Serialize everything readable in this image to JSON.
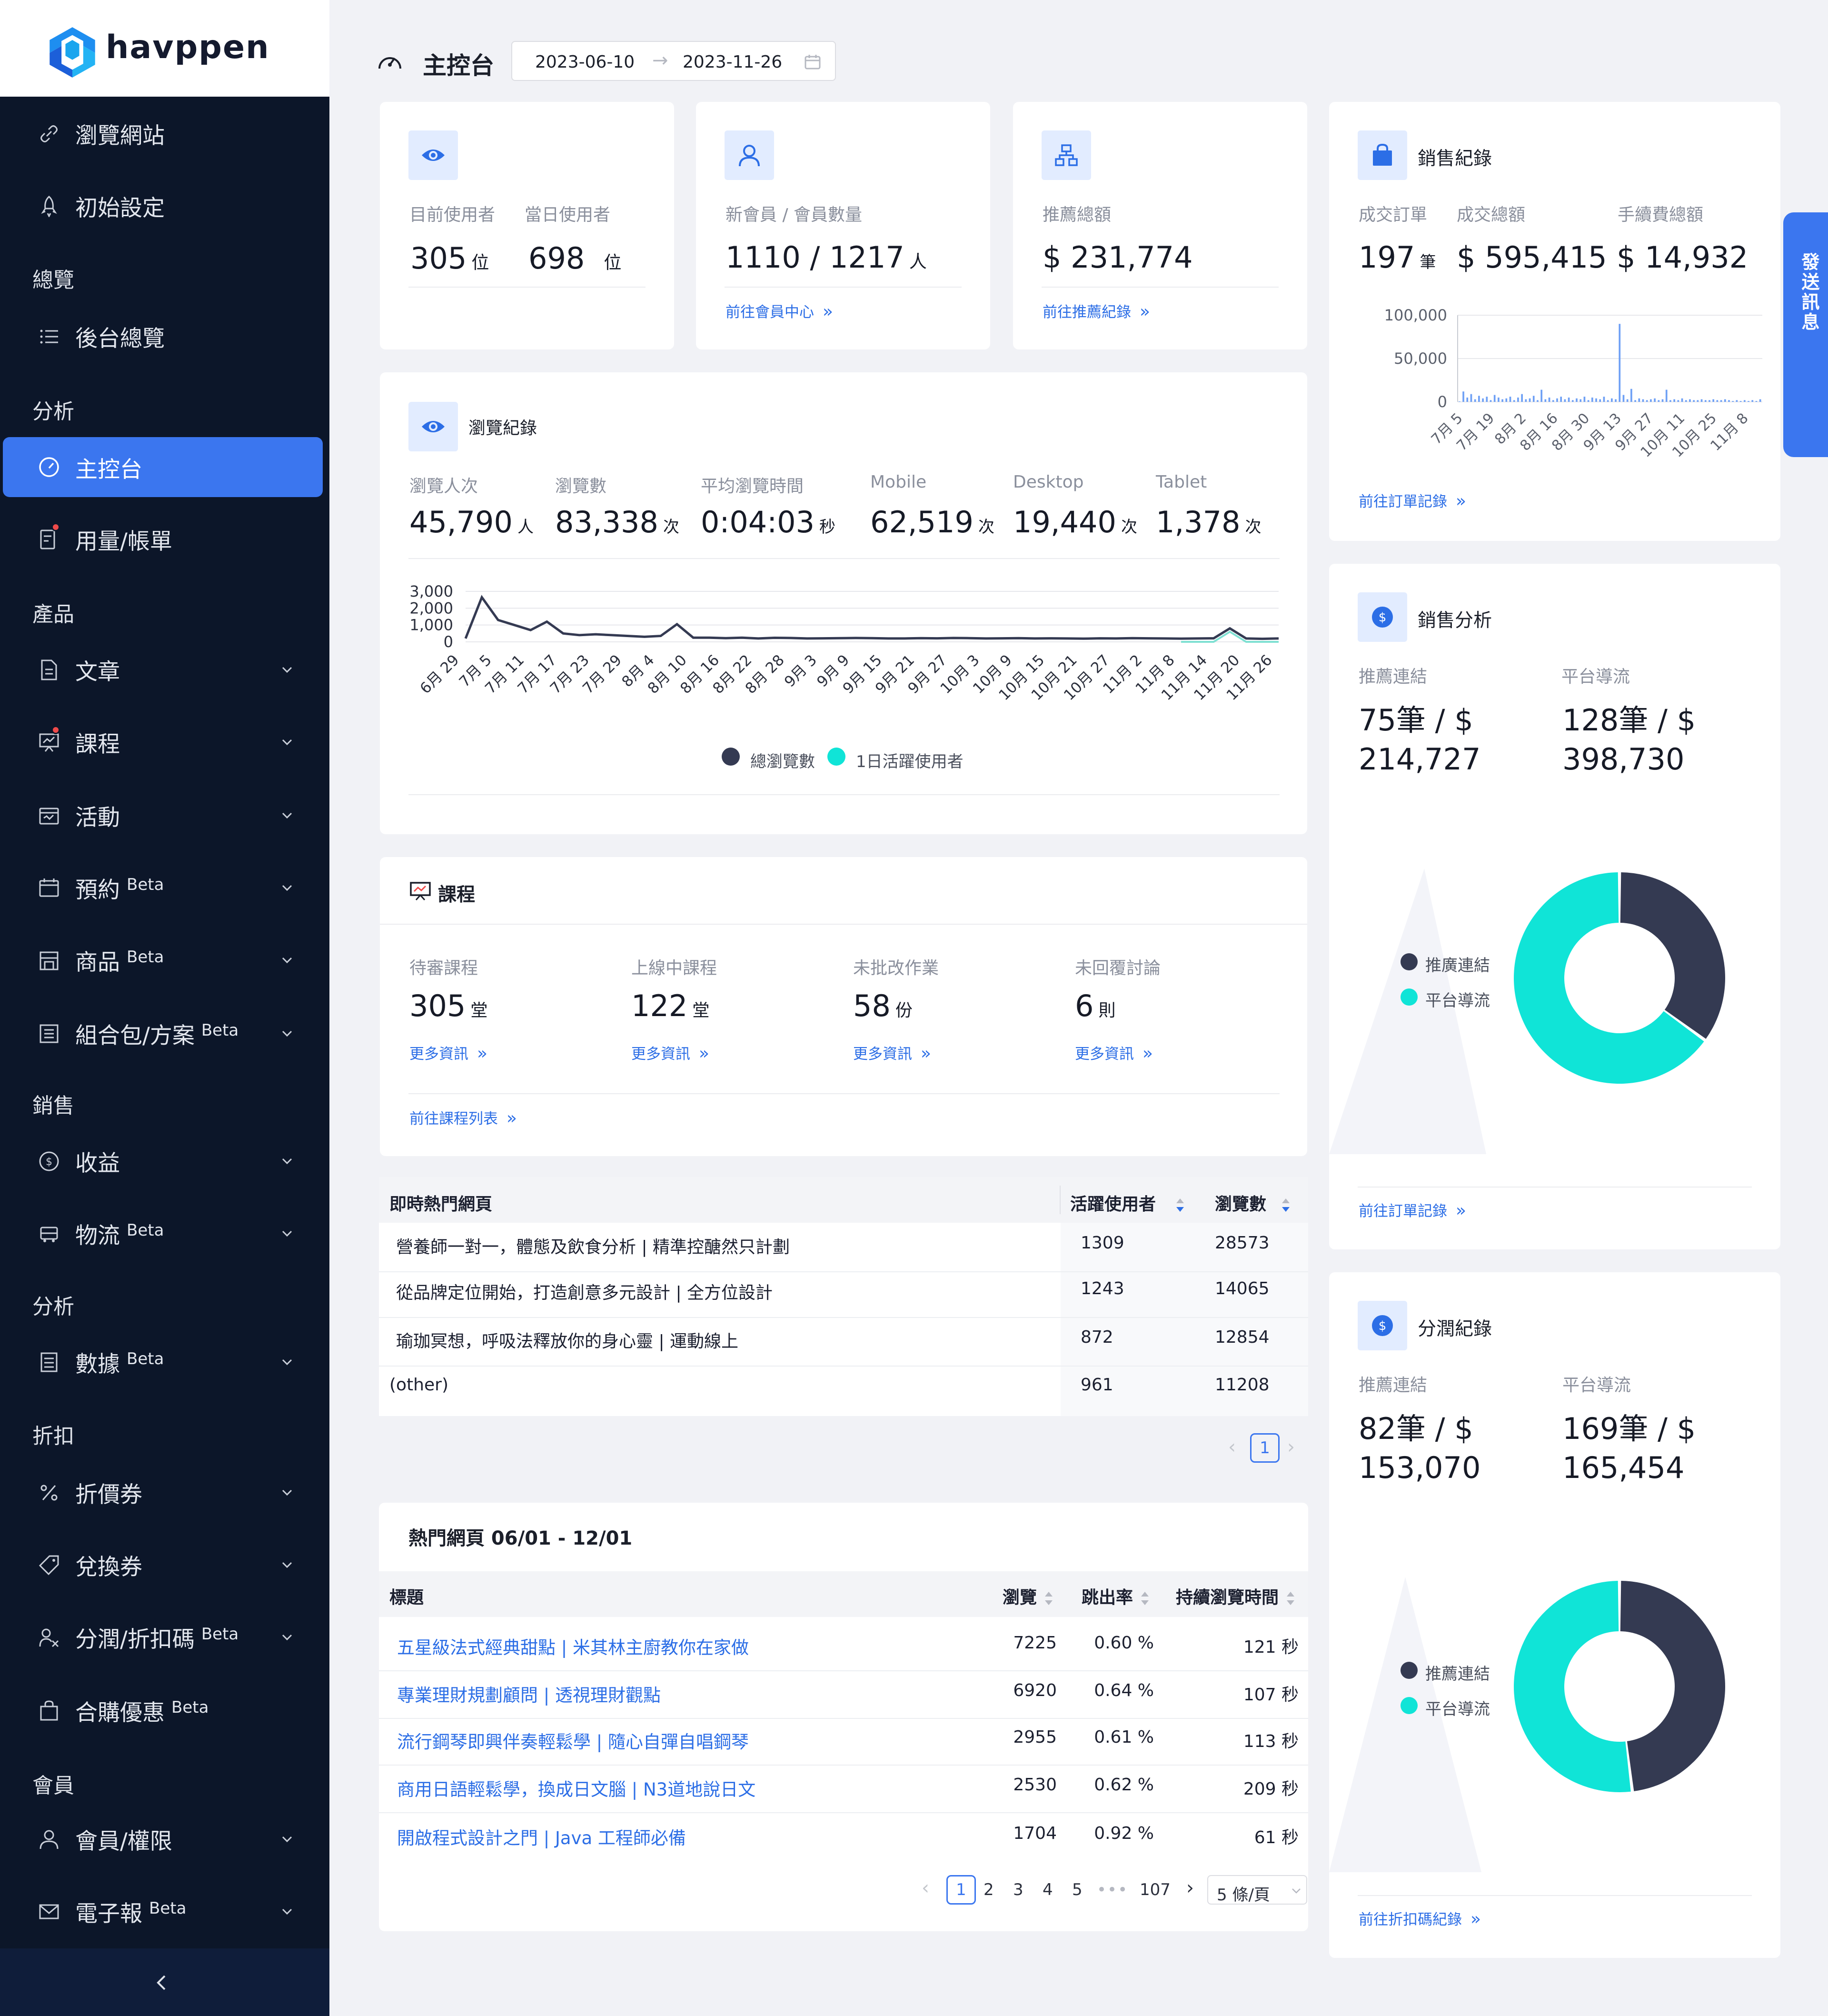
{
  "brand": {
    "name": "havppen"
  },
  "sidebar": {
    "items": [
      {
        "label": "瀏覽網站"
      },
      {
        "label": "初始設定"
      },
      {
        "label": "後台總覽"
      },
      {
        "label": "主控台"
      },
      {
        "label": "用量/帳單"
      },
      {
        "label": "文章"
      },
      {
        "label": "課程"
      },
      {
        "label": "活動"
      },
      {
        "label": "預約",
        "beta": "Beta"
      },
      {
        "label": "商品",
        "beta": "Beta"
      },
      {
        "label": "組合包/方案",
        "beta": "Beta"
      },
      {
        "label": "收益"
      },
      {
        "label": "物流",
        "beta": "Beta"
      },
      {
        "label": "數據",
        "beta": "Beta"
      },
      {
        "label": "折價券"
      },
      {
        "label": "兌換券"
      },
      {
        "label": "分潤/折扣碼",
        "beta": "Beta"
      },
      {
        "label": "合購優惠",
        "beta": "Beta"
      },
      {
        "label": "會員/權限"
      },
      {
        "label": "電子報",
        "beta": "Beta"
      }
    ],
    "groups": [
      "總覽",
      "分析",
      "產品",
      "銷售",
      "分析",
      "折扣",
      "會員"
    ],
    "collapse_icon": "chevron-left-icon"
  },
  "header": {
    "title": "主控台",
    "date_start": "2023-06-10",
    "date_end": "2023-11-26",
    "arrow": "→"
  },
  "side_tab": {
    "label": "發送訊息"
  },
  "users_card": {
    "current_label": "目前使用者",
    "current_value": "305",
    "current_unit": "位",
    "daily_label": "當日使用者",
    "daily_value": "698",
    "daily_unit": "位"
  },
  "members_card": {
    "label": "新會員 / 會員數量",
    "value": "1110 / 1217",
    "unit": "人",
    "link": "前往會員中心"
  },
  "referral_card": {
    "label": "推薦總額",
    "value": "$ 231,774",
    "link": "前往推薦紀錄"
  },
  "sales_card": {
    "title": "銷售紀錄",
    "orders_label": "成交訂單",
    "orders_value": "197",
    "orders_unit": "筆",
    "total_label": "成交總額",
    "total_value": "$ 595,415",
    "fee_label": "手續費總額",
    "fee_value": "$ 14,932",
    "link": "前往訂單記錄"
  },
  "browse_card": {
    "title": "瀏覽紀錄",
    "stats": [
      {
        "label": "瀏覽人次",
        "value": "45,790",
        "unit": "人"
      },
      {
        "label": "瀏覽數",
        "value": "83,338",
        "unit": "次"
      },
      {
        "label": "平均瀏覽時間",
        "value": "0:04:03",
        "unit": "秒"
      },
      {
        "label": "Mobile",
        "value": "62,519",
        "unit": "次"
      },
      {
        "label": "Desktop",
        "value": "19,440",
        "unit": "次"
      },
      {
        "label": "Tablet",
        "value": "1,378",
        "unit": "次"
      }
    ],
    "legend": [
      "總瀏覽數",
      "1日活躍使用者"
    ]
  },
  "course_card": {
    "title": "課程",
    "stats": [
      {
        "label": "待審課程",
        "value": "305",
        "unit": "堂",
        "link": "更多資訊"
      },
      {
        "label": "上線中課程",
        "value": "122",
        "unit": "堂",
        "link": "更多資訊"
      },
      {
        "label": "未批改作業",
        "value": "58",
        "unit": "份",
        "link": "更多資訊"
      },
      {
        "label": "未回覆討論",
        "value": "6",
        "unit": "則",
        "link": "更多資訊"
      }
    ],
    "footer_link": "前往課程列表"
  },
  "live_table": {
    "headers": [
      "即時熱門網頁",
      "活躍使用者",
      "瀏覽數"
    ],
    "rows": [
      [
        "營養師一對一，體態及飲食分析 | 精準控醣然只計劃",
        "1309",
        "28573"
      ],
      [
        "從品牌定位開始，打造創意多元設計 | 全方位設計",
        "1243",
        "14065"
      ],
      [
        "瑜珈冥想，呼吸法釋放你的身心靈 | 運動線上",
        "872",
        "12854"
      ],
      [
        "(other)",
        "961",
        "11208"
      ]
    ],
    "page": "1"
  },
  "hot_table": {
    "title": "熱門網頁 06/01 - 12/01",
    "headers": [
      "標題",
      "瀏覽",
      "跳出率",
      "持續瀏覽時間"
    ],
    "rows": [
      [
        "五星級法式經典甜點 | 米其林主廚教你在家做",
        "7225",
        "0.60 %",
        "121 秒"
      ],
      [
        "專業理財規劃顧問 | 透視理財觀點",
        "6920",
        "0.64 %",
        "107 秒"
      ],
      [
        "流行鋼琴即興伴奏輕鬆學 | 隨心自彈自唱鋼琴",
        "2955",
        "0.61 %",
        "113 秒"
      ],
      [
        "商用日語輕鬆學，換成日文腦 | N3道地說日文",
        "2530",
        "0.62 %",
        "209 秒"
      ],
      [
        "開啟程式設計之門 | Java 工程師必備",
        "1704",
        "0.92 %",
        "61 秒"
      ]
    ],
    "pages": [
      "1",
      "2",
      "3",
      "4",
      "5",
      "•••",
      "107"
    ],
    "page_size": "5 條/頁"
  },
  "sales_analysis": {
    "title": "銷售分析",
    "ref_label": "推薦連結",
    "ref_line1": "75筆 / $",
    "ref_line2": "214,727",
    "plat_label": "平台導流",
    "plat_line1": "128筆 / $",
    "plat_line2": "398,730",
    "legend": [
      "推廣連結",
      "平台導流"
    ],
    "link": "前往訂單記錄"
  },
  "share_card": {
    "title": "分潤紀錄",
    "ref_label": "推薦連結",
    "ref_line1": "82筆 / $",
    "ref_line2": "153,070",
    "plat_label": "平台導流",
    "plat_line1": "169筆 / $",
    "plat_line2": "165,454",
    "legend": [
      "推薦連結",
      "平台導流"
    ],
    "link": "前往折扣碼紀錄"
  },
  "colors": {
    "primary": "#3b76ef",
    "dark": "#343a52",
    "teal": "#10e4d7",
    "sidebar": "#0c1629",
    "link": "#2c6ee6"
  },
  "chart_data": [
    {
      "type": "bar",
      "title": "",
      "ylim": [
        0,
        100000
      ],
      "yticks": [
        "100,000",
        "50,000",
        "0"
      ],
      "x_ticks": [
        "7月 5",
        "7月 19",
        "8月 2",
        "8月 16",
        "8月 30",
        "9月 13",
        "9月 27",
        "10月 11",
        "10月 25",
        "11月 8"
      ],
      "values": [
        0,
        12000,
        5000,
        9000,
        3000,
        7000,
        4000,
        6000,
        2000,
        8000,
        5000,
        3000,
        4000,
        6000,
        2000,
        5000,
        9000,
        3000,
        4000,
        7000,
        2000,
        14000,
        3000,
        5000,
        2000,
        4000,
        6000,
        3000,
        5000,
        2000,
        4000,
        3000,
        6000,
        2000,
        5000,
        4000,
        3000,
        6000,
        2000,
        4000,
        3000,
        90000,
        8000,
        3000,
        15000,
        2000,
        4000,
        3000,
        2000,
        3000,
        4000,
        2000,
        3000,
        14000,
        2000,
        3000,
        2000,
        4000,
        2000,
        3000,
        2000,
        2000,
        3000,
        2000,
        2000,
        3000,
        2000,
        2000,
        3000,
        2000,
        1000,
        2000,
        1000,
        2000,
        1000,
        2000,
        1000,
        3000
      ],
      "grid": true
    },
    {
      "type": "line",
      "title": "",
      "ylim": [
        0,
        3000
      ],
      "yticks": [
        "3,000",
        "2,000",
        "1,000",
        "0"
      ],
      "x_ticks": [
        "6月 29",
        "7月 5",
        "7月 11",
        "7月 17",
        "7月 23",
        "7月 29",
        "8月 4",
        "8月 10",
        "8月 16",
        "8月 22",
        "8月 28",
        "9月 3",
        "9月 9",
        "9月 15",
        "9月 21",
        "9月 27",
        "10月 3",
        "10月 9",
        "10月 15",
        "10月 21",
        "10月 27",
        "11月 2",
        "11月 8",
        "11月 14",
        "11月 20",
        "11月 26"
      ],
      "series": [
        {
          "name": "總瀏覽數",
          "values": [
            200,
            2650,
            1300,
            1000,
            700,
            1200,
            500,
            400,
            450,
            400,
            350,
            300,
            350,
            1050,
            250,
            250,
            220,
            250,
            200,
            240,
            230,
            200,
            210,
            220,
            230,
            220,
            200,
            200,
            220,
            210,
            230,
            220,
            200,
            210,
            220,
            200,
            210,
            200,
            190,
            210,
            200,
            220,
            210,
            200,
            190,
            200,
            210,
            800,
            200,
            180,
            200
          ]
        },
        {
          "name": "1日活躍使用者",
          "values": [
            0,
            0,
            0,
            0,
            0,
            0,
            0,
            0,
            0,
            0,
            0,
            0,
            0,
            0,
            0,
            0,
            0,
            0,
            0,
            0,
            0,
            0,
            0,
            0,
            0,
            0,
            0,
            0,
            0,
            0,
            0,
            0,
            0,
            0,
            0,
            0,
            0,
            0,
            0,
            0,
            0,
            0,
            0,
            0,
            0,
            0,
            0,
            600,
            0,
            0,
            0
          ]
        }
      ],
      "legend": "bottom"
    },
    {
      "type": "pie",
      "labels": [
        "推廣連結",
        "平台導流"
      ],
      "values": [
        214727,
        398730
      ],
      "title": ""
    },
    {
      "type": "pie",
      "labels": [
        "推薦連結",
        "平台導流"
      ],
      "values": [
        153070,
        165454
      ],
      "title": ""
    }
  ]
}
